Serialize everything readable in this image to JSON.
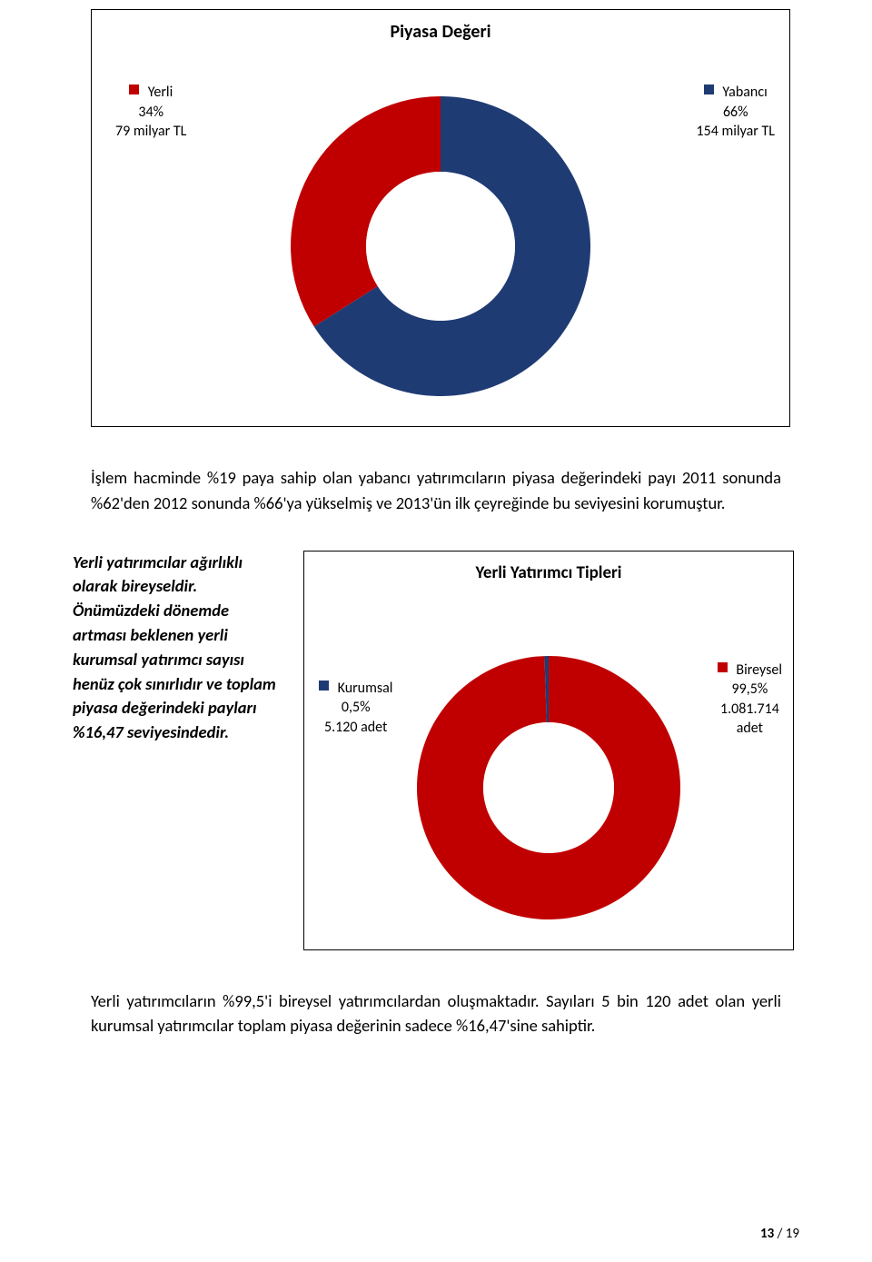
{
  "chart1": {
    "type": "donut",
    "title": "Piyasa Değeri",
    "slices": [
      {
        "key": "yabanci",
        "value": 66,
        "color": "#1f3b73"
      },
      {
        "key": "yerli",
        "value": 34,
        "color": "#c00000"
      }
    ],
    "start_angle_deg": -90,
    "outer_r": 165,
    "inner_r": 82,
    "bg": "#ffffff",
    "legend_left": {
      "marker_color": "#c00000",
      "line1": "Yerli",
      "line2": "34%",
      "line3": "79 milyar TL"
    },
    "legend_right": {
      "marker_color": "#1f3b73",
      "line1": "Yabancı",
      "line2": "66%",
      "line3": "154 milyar TL"
    }
  },
  "mid_paragraph": "İşlem hacminde %19 paya sahip olan yabancı yatırımcıların piyasa değerindeki payı 2011 sonunda %62'den 2012 sonunda %66'ya yükselmiş ve 2013'ün ilk çeyreğinde bu seviyesini korumuştur.",
  "sidenote": "Yerli yatırımcılar ağırlıklı olarak bireyseldir. Önümüzdeki dönemde artması beklenen yerli kurumsal yatırımcı sayısı henüz çok sınırlıdır ve toplam piyasa değerindeki payları %16,47 seviyesindedir.",
  "chart2": {
    "type": "donut",
    "title": "Yerli Yatırımcı Tipleri",
    "slices": [
      {
        "key": "bireysel",
        "value": 99.5,
        "color": "#c00000"
      },
      {
        "key": "kurumsal",
        "value": 0.5,
        "color": "#1f3b73"
      }
    ],
    "start_angle_deg": -90,
    "outer_r": 145,
    "inner_r": 72,
    "bg": "#ffffff",
    "legend_left": {
      "marker_color": "#1f3b73",
      "line1": "Kurumsal",
      "line2": "0,5%",
      "line3": "5.120 adet"
    },
    "legend_right": {
      "marker_color": "#c00000",
      "line1": "Bireysel",
      "line2": "99,5%",
      "line3": "1.081.714",
      "line4": "adet"
    }
  },
  "bottom_paragraph": "Yerli yatırımcıların %99,5'i bireysel yatırımcılardan oluşmaktadır. Sayıları 5 bin 120 adet olan yerli kurumsal yatırımcılar toplam piyasa değerinin sadece %16,47'sine sahiptir.",
  "page": {
    "current": "13",
    "sep": " / ",
    "total": "19"
  }
}
